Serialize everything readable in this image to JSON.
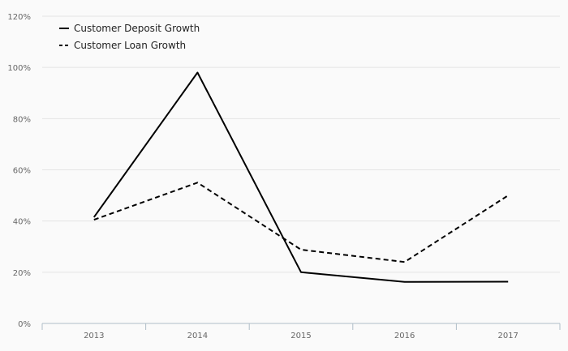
{
  "chart_data": {
    "type": "line",
    "title": "",
    "xlabel": "",
    "ylabel": "",
    "categories": [
      "2013",
      "2014",
      "2015",
      "2016",
      "2017"
    ],
    "ylim": [
      0,
      120
    ],
    "y_ticks": [
      0,
      20,
      40,
      60,
      80,
      100,
      120
    ],
    "y_tick_labels": [
      "0%",
      "20%",
      "40%",
      "60%",
      "80%",
      "100%",
      "120%"
    ],
    "grid": true,
    "legend_position": "top-left",
    "series": [
      {
        "name": "Customer Deposit Growth",
        "values": [
          41.5,
          98,
          20,
          16.2,
          16.3
        ],
        "style": "solid",
        "color": "#000000"
      },
      {
        "name": "Customer Loan Growth",
        "values": [
          40.5,
          55,
          28.8,
          24,
          50
        ],
        "style": "dashed",
        "color": "#000000"
      }
    ]
  }
}
